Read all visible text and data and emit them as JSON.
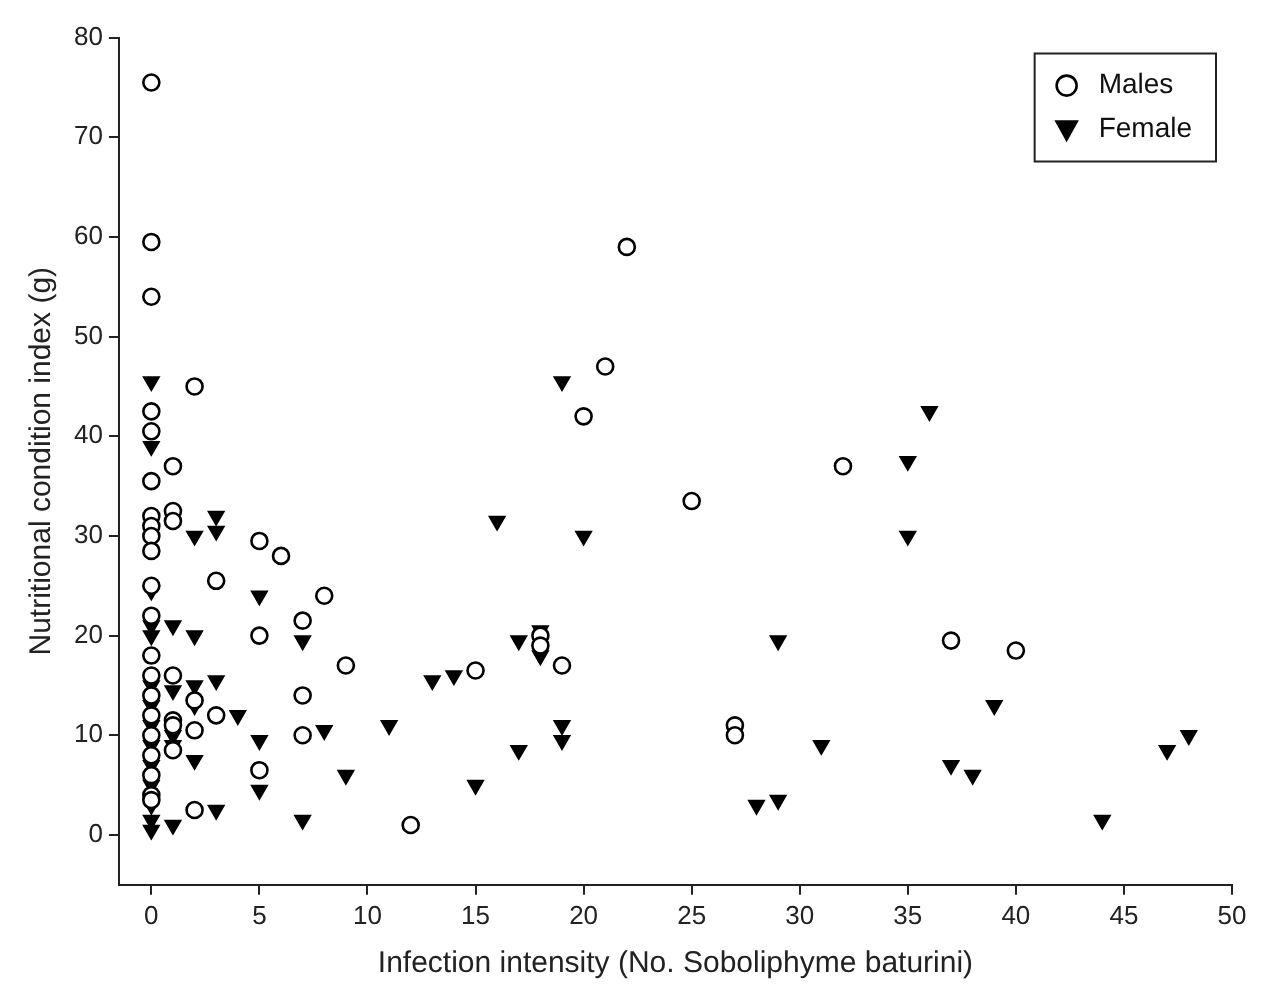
{
  "chart_data": {
    "type": "scatter",
    "xlabel": "Infection intensity (No. Soboliphyme baturini)",
    "ylabel": "Nutritional condition index (g)",
    "xlim": [
      -1.5,
      50
    ],
    "ylim": [
      -5,
      80
    ],
    "xticks": [
      0,
      5,
      10,
      15,
      20,
      25,
      30,
      35,
      40,
      45,
      50
    ],
    "yticks": [
      0,
      10,
      20,
      30,
      40,
      50,
      60,
      70,
      80
    ],
    "grid": false,
    "legend": "top right",
    "series": [
      {
        "name": "Males",
        "color": "#000000",
        "marker": "circle",
        "x": [
          0,
          0,
          0,
          0,
          0,
          0,
          0,
          0,
          0,
          0,
          0,
          0,
          0,
          0,
          0,
          0,
          0,
          0,
          0,
          0,
          0,
          1,
          1,
          1,
          1,
          1,
          1,
          1,
          2,
          2,
          2,
          2,
          3,
          3,
          5,
          5,
          5,
          6,
          7,
          7,
          7,
          8,
          9,
          12,
          15,
          18,
          18,
          19,
          20,
          21,
          22,
          25,
          27,
          27,
          32,
          37,
          40
        ],
        "values": [
          75.5,
          59.5,
          54,
          42.5,
          40.5,
          35.5,
          32,
          31,
          30,
          28.5,
          25,
          22,
          18,
          16,
          14,
          12,
          10,
          8,
          6,
          4,
          3.5,
          37,
          32.5,
          31.5,
          16,
          11.5,
          11,
          8.5,
          45,
          13.5,
          10.5,
          2.5,
          25.5,
          12,
          29.5,
          20,
          6.5,
          28,
          21.5,
          14,
          10,
          24,
          17,
          1,
          16.5,
          20,
          19,
          17,
          42,
          47,
          59,
          33.5,
          11,
          10,
          37,
          19.5,
          18.5
        ]
      },
      {
        "name": "Female",
        "color": "#000000",
        "marker": "triangle",
        "x": [
          0,
          0,
          0,
          0,
          0,
          0,
          0,
          0,
          0,
          0,
          0,
          0,
          0,
          0,
          1,
          1,
          1,
          1,
          1,
          2,
          2,
          2,
          2,
          2,
          3,
          3,
          3,
          3,
          4,
          5,
          5,
          5,
          7,
          7,
          8,
          9,
          11,
          13,
          14,
          15,
          16,
          17,
          17,
          18,
          18,
          19,
          19,
          19,
          20,
          28,
          29,
          29,
          31,
          35,
          35,
          36,
          37,
          38,
          39,
          44,
          47,
          48
        ],
        "values": [
          45.5,
          39,
          24.5,
          21,
          20,
          15,
          13,
          11,
          9,
          7,
          5,
          3,
          1.5,
          0.5,
          21,
          14.5,
          10,
          9,
          1,
          30,
          20,
          15,
          13,
          7.5,
          32,
          30.5,
          15.5,
          2.5,
          12,
          24,
          9.5,
          4.5,
          19.5,
          1.5,
          10.5,
          6,
          11,
          15.5,
          16,
          5,
          31.5,
          8.5,
          19.5,
          20.5,
          18,
          45.5,
          11,
          9.5,
          30,
          3,
          19.5,
          3.5,
          9,
          37.5,
          30,
          42.5,
          7,
          6,
          13,
          1.5,
          8.5,
          10
        ]
      }
    ]
  }
}
